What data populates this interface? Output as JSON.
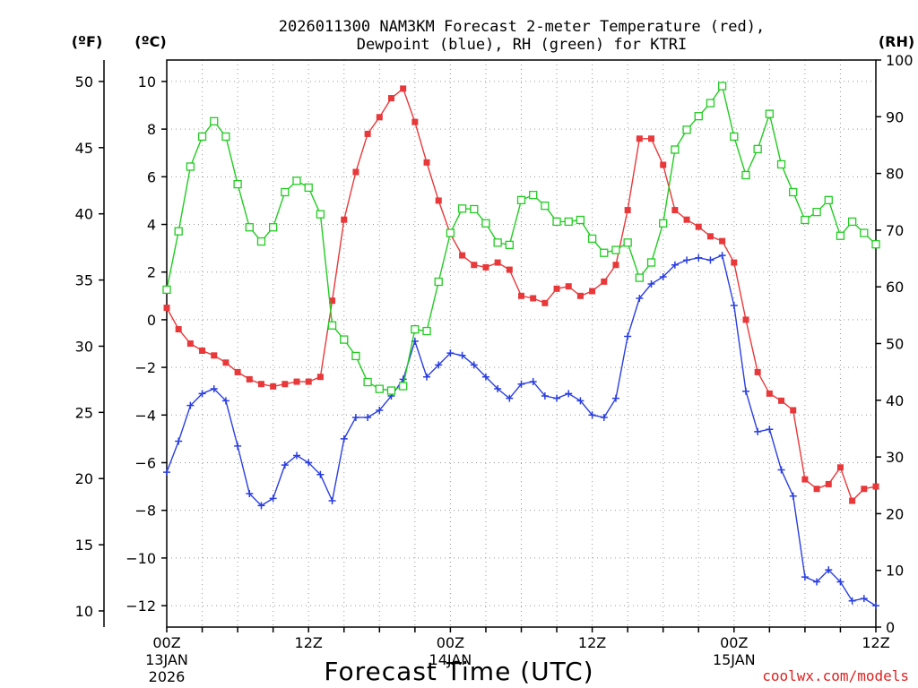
{
  "chart_data": {
    "type": "line",
    "title_line1": "2026011300 NAM3KM Forecast 2-meter Temperature (red),",
    "title_line2": "Dewpoint (blue), RH (green) for KTRI",
    "xlabel": "Forecast Time (UTC)",
    "credit": "coolwx.com/models",
    "units": {
      "fahrenheit": "(ºF)",
      "celsius": "(ºC)",
      "rh": "(RH)"
    },
    "x_range_hours": [
      0,
      60
    ],
    "celsius_ylim": [
      -12.9,
      10.9
    ],
    "rh_ylim": [
      0,
      100
    ],
    "fahrenheit_ticks": [
      "50",
      "45",
      "40",
      "35",
      "30",
      "25",
      "20",
      "15",
      "10"
    ],
    "fahrenheit_tick_values": [
      50,
      45,
      40,
      35,
      30,
      25,
      20,
      15,
      10
    ],
    "celsius_ticks": [
      "10",
      "8",
      "6",
      "4",
      "2",
      "0",
      "−2",
      "−4",
      "−6",
      "−8",
      "−10",
      "−12"
    ],
    "celsius_tick_values": [
      10,
      8,
      6,
      4,
      2,
      0,
      -2,
      -4,
      -6,
      -8,
      -10,
      -12
    ],
    "rh_ticks": [
      "100",
      "90",
      "80",
      "70",
      "60",
      "50",
      "40",
      "30",
      "20",
      "10",
      "0"
    ],
    "rh_tick_values": [
      100,
      90,
      80,
      70,
      60,
      50,
      40,
      30,
      20,
      10,
      0
    ],
    "x_ticks": [
      {
        "hour": 0,
        "label": "00Z",
        "sub1": "13JAN",
        "sub2": "2026"
      },
      {
        "hour": 12,
        "label": "12Z",
        "sub1": "",
        "sub2": ""
      },
      {
        "hour": 24,
        "label": "00Z",
        "sub1": "14JAN",
        "sub2": ""
      },
      {
        "hour": 36,
        "label": "12Z",
        "sub1": "",
        "sub2": ""
      },
      {
        "hour": 48,
        "label": "00Z",
        "sub1": "15JAN",
        "sub2": ""
      },
      {
        "hour": 60,
        "label": "12Z",
        "sub1": "",
        "sub2": ""
      }
    ],
    "series": [
      {
        "name": "2-meter Temperature",
        "axis": "celsius",
        "color": "#e8383a",
        "marker": "filled-square",
        "points": [
          [
            0,
            0.5
          ],
          [
            1,
            -0.4
          ],
          [
            2,
            -1.0
          ],
          [
            3,
            -1.3
          ],
          [
            4,
            -1.5
          ],
          [
            5,
            -1.8
          ],
          [
            6,
            -2.2
          ],
          [
            7,
            -2.5
          ],
          [
            8,
            -2.7
          ],
          [
            9,
            -2.8
          ],
          [
            10,
            -2.7
          ],
          [
            11,
            -2.6
          ],
          [
            12,
            -2.6
          ],
          [
            13,
            -2.4
          ],
          [
            14,
            0.8
          ],
          [
            15,
            4.2
          ],
          [
            16,
            6.2
          ],
          [
            17,
            7.8
          ],
          [
            18,
            8.5
          ],
          [
            19,
            9.3
          ],
          [
            20,
            9.7
          ],
          [
            21,
            8.3
          ],
          [
            22,
            6.6
          ],
          [
            23,
            5.0
          ],
          [
            24,
            3.6
          ],
          [
            25,
            2.7
          ],
          [
            26,
            2.3
          ],
          [
            27,
            2.2
          ],
          [
            28,
            2.4
          ],
          [
            29,
            2.1
          ],
          [
            30,
            1.0
          ],
          [
            31,
            0.9
          ],
          [
            32,
            0.7
          ],
          [
            33,
            1.3
          ],
          [
            34,
            1.4
          ],
          [
            35,
            1.0
          ],
          [
            36,
            1.2
          ],
          [
            37,
            1.6
          ],
          [
            38,
            2.3
          ],
          [
            39,
            4.6
          ],
          [
            40,
            7.6
          ],
          [
            41,
            7.6
          ],
          [
            42,
            6.5
          ],
          [
            43,
            4.6
          ],
          [
            44,
            4.2
          ],
          [
            45,
            3.9
          ],
          [
            46,
            3.5
          ],
          [
            47,
            3.3
          ],
          [
            48,
            2.4
          ],
          [
            49,
            0.0
          ],
          [
            50,
            -2.2
          ],
          [
            51,
            -3.1
          ],
          [
            52,
            -3.4
          ],
          [
            53,
            -3.8
          ],
          [
            54,
            -6.7
          ],
          [
            55,
            -7.1
          ],
          [
            56,
            -6.9
          ],
          [
            57,
            -6.2
          ],
          [
            58,
            -7.6
          ],
          [
            59,
            -7.1
          ],
          [
            60,
            -7.0
          ]
        ]
      },
      {
        "name": "Dewpoint",
        "axis": "celsius",
        "color": "#2a3ee0",
        "marker": "plus",
        "points": [
          [
            0,
            -6.4
          ],
          [
            1,
            -5.1
          ],
          [
            2,
            -3.6
          ],
          [
            3,
            -3.1
          ],
          [
            4,
            -2.9
          ],
          [
            5,
            -3.4
          ],
          [
            6,
            -5.3
          ],
          [
            7,
            -7.3
          ],
          [
            8,
            -7.8
          ],
          [
            9,
            -7.5
          ],
          [
            10,
            -6.1
          ],
          [
            11,
            -5.7
          ],
          [
            12,
            -6.0
          ],
          [
            13,
            -6.5
          ],
          [
            14,
            -7.6
          ],
          [
            15,
            -5.0
          ],
          [
            16,
            -4.1
          ],
          [
            17,
            -4.1
          ],
          [
            18,
            -3.8
          ],
          [
            19,
            -3.2
          ],
          [
            20,
            -2.5
          ],
          [
            21,
            -0.9
          ],
          [
            22,
            -2.4
          ],
          [
            23,
            -1.9
          ],
          [
            24,
            -1.4
          ],
          [
            25,
            -1.5
          ],
          [
            26,
            -1.9
          ],
          [
            27,
            -2.4
          ],
          [
            28,
            -2.9
          ],
          [
            29,
            -3.3
          ],
          [
            30,
            -2.7
          ],
          [
            31,
            -2.6
          ],
          [
            32,
            -3.2
          ],
          [
            33,
            -3.3
          ],
          [
            34,
            -3.1
          ],
          [
            35,
            -3.4
          ],
          [
            36,
            -4.0
          ],
          [
            37,
            -4.1
          ],
          [
            38,
            -3.3
          ],
          [
            39,
            -0.7
          ],
          [
            40,
            0.9
          ],
          [
            41,
            1.5
          ],
          [
            42,
            1.8
          ],
          [
            43,
            2.3
          ],
          [
            44,
            2.5
          ],
          [
            45,
            2.6
          ],
          [
            46,
            2.5
          ],
          [
            47,
            2.7
          ],
          [
            48,
            0.6
          ],
          [
            49,
            -3.0
          ],
          [
            50,
            -4.7
          ],
          [
            51,
            -4.6
          ],
          [
            52,
            -6.3
          ],
          [
            53,
            -7.4
          ],
          [
            54,
            -10.8
          ],
          [
            55,
            -11.0
          ],
          [
            56,
            -10.5
          ],
          [
            57,
            -11.0
          ],
          [
            58,
            -11.8
          ],
          [
            59,
            -11.7
          ],
          [
            60,
            -12.0
          ]
        ]
      },
      {
        "name": "RH",
        "axis": "rh",
        "color": "#22cc22",
        "marker": "open-square",
        "points": [
          [
            0,
            59.5
          ],
          [
            1,
            69.8
          ],
          [
            2,
            81.2
          ],
          [
            3,
            86.5
          ],
          [
            4,
            89.2
          ],
          [
            5,
            86.5
          ],
          [
            6,
            78.1
          ],
          [
            7,
            70.5
          ],
          [
            8,
            68.0
          ],
          [
            9,
            70.5
          ],
          [
            10,
            76.7
          ],
          [
            11,
            78.7
          ],
          [
            12,
            77.5
          ],
          [
            13,
            72.8
          ],
          [
            14,
            53.2
          ],
          [
            15,
            50.7
          ],
          [
            16,
            47.8
          ],
          [
            17,
            43.2
          ],
          [
            18,
            42.0
          ],
          [
            19,
            41.7
          ],
          [
            20,
            42.5
          ],
          [
            21,
            52.5
          ],
          [
            22,
            52.2
          ],
          [
            23,
            60.9
          ],
          [
            24,
            69.5
          ],
          [
            25,
            73.8
          ],
          [
            26,
            73.7
          ],
          [
            27,
            71.2
          ],
          [
            28,
            67.8
          ],
          [
            29,
            67.4
          ],
          [
            30,
            75.3
          ],
          [
            31,
            76.2
          ],
          [
            32,
            74.3
          ],
          [
            33,
            71.5
          ],
          [
            34,
            71.5
          ],
          [
            35,
            71.8
          ],
          [
            36,
            68.5
          ],
          [
            37,
            66.0
          ],
          [
            38,
            66.5
          ],
          [
            39,
            67.8
          ],
          [
            40,
            61.6
          ],
          [
            41,
            64.3
          ],
          [
            42,
            71.2
          ],
          [
            43,
            84.2
          ],
          [
            44,
            87.7
          ],
          [
            45,
            90.1
          ],
          [
            46,
            92.4
          ],
          [
            47,
            95.4
          ],
          [
            48,
            86.5
          ],
          [
            49,
            79.7
          ],
          [
            50,
            84.3
          ],
          [
            51,
            90.5
          ],
          [
            52,
            81.6
          ],
          [
            53,
            76.7
          ],
          [
            54,
            71.8
          ],
          [
            55,
            73.2
          ],
          [
            56,
            75.3
          ],
          [
            57,
            69.0
          ],
          [
            58,
            71.5
          ],
          [
            59,
            69.5
          ],
          [
            60,
            67.5
          ]
        ]
      }
    ]
  }
}
